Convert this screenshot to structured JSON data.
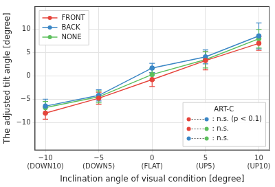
{
  "chart_data": {
    "type": "line",
    "x_label": "Inclination angle of visual condition [degree]",
    "y_label": "The adjusted tilt angle [degree]",
    "x": [
      -10,
      -5,
      0,
      5,
      10
    ],
    "xlim": [
      -11,
      11
    ],
    "xticks": [
      {
        "value": -10,
        "label": "−10\n(DOWN10)"
      },
      {
        "value": -5,
        "label": "−5\n(DOWN5)"
      },
      {
        "value": 0,
        "label": "0\n(FLAT)"
      },
      {
        "value": 5,
        "label": "5\n(UP5)"
      },
      {
        "value": 10,
        "label": "10\n(UP10)"
      }
    ],
    "ylim": [
      -16,
      15
    ],
    "yticks": [
      {
        "value": -10,
        "label": "−10"
      },
      {
        "value": -5,
        "label": "−5"
      },
      0,
      5,
      10
    ],
    "grid": true,
    "legend": "upper left",
    "series": [
      {
        "name": "FRONT",
        "color": "#e6443b",
        "marker": "circle",
        "line_style": "solid",
        "values": [
          -8.0,
          -4.8,
          -0.8,
          3.3,
          7.0
        ],
        "errors": [
          1.3,
          1.3,
          1.5,
          2.0,
          1.5
        ]
      },
      {
        "name": "BACK",
        "color": "#3a86c5",
        "marker": "circle",
        "line_style": "solid",
        "values": [
          -6.5,
          -4.2,
          1.7,
          4.1,
          8.6
        ],
        "errors": [
          1.5,
          1.2,
          1.0,
          1.5,
          2.8
        ]
      },
      {
        "name": "NONE",
        "color": "#5cbf5c",
        "marker": "circle",
        "line_style": "solid",
        "values": [
          -6.8,
          -4.5,
          0.3,
          3.5,
          8.0
        ],
        "errors": [
          1.3,
          1.3,
          1.3,
          1.8,
          2.0
        ]
      }
    ],
    "annotation": {
      "title": "ART-C",
      "items": [
        {
          "colors": [
            "#e6443b",
            "#3a86c5"
          ],
          "text": ": n.s. (p < 0.1)"
        },
        {
          "colors": [
            "#e6443b",
            "#5cbf5c"
          ],
          "text": ": n.s."
        },
        {
          "colors": [
            "#3a86c5",
            "#5cbf5c"
          ],
          "text": ": n.s."
        }
      ]
    }
  }
}
